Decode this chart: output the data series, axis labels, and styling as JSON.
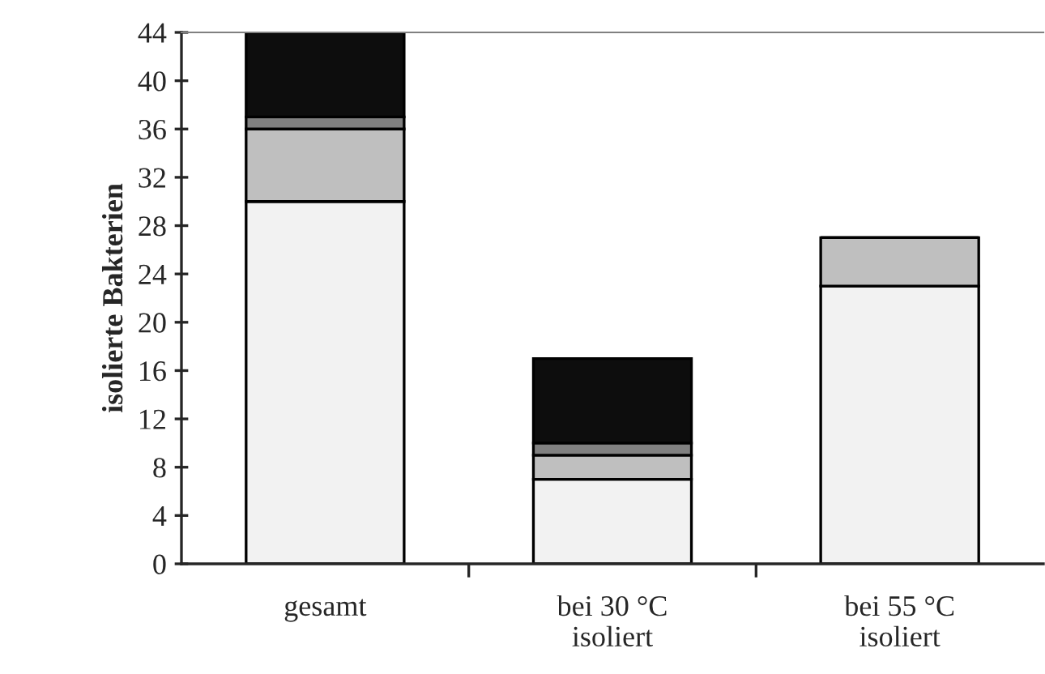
{
  "chart_data": {
    "type": "bar",
    "stacked": true,
    "ylabel": "isolierte Bakterien",
    "categories": [
      "gesamt",
      "bei 30 °C\nisoliert",
      "bei 55 °C\nisoliert"
    ],
    "series": [
      {
        "color": "#f2f2f2",
        "values": [
          30,
          7,
          23
        ]
      },
      {
        "color": "#bfbfbf",
        "values": [
          6,
          2,
          4
        ]
      },
      {
        "color": "#808080",
        "values": [
          1,
          1,
          0
        ]
      },
      {
        "color": "#0d0d0d",
        "values": [
          7,
          7,
          0
        ]
      }
    ],
    "ylim": [
      0,
      44
    ],
    "yticks": [
      0,
      4,
      8,
      12,
      16,
      20,
      24,
      28,
      32,
      36,
      40,
      44
    ],
    "grid": false,
    "legend": false
  }
}
